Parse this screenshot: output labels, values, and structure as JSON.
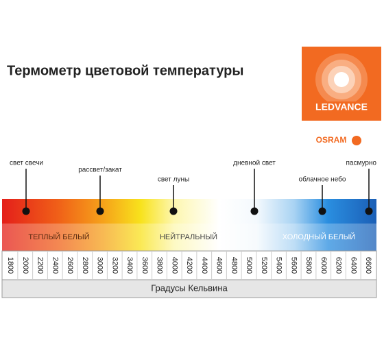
{
  "header": {
    "title": "Термометр цветовой температуры"
  },
  "brand": {
    "logo": "LEDVANCE",
    "sub": "OSRAM"
  },
  "markers": [
    {
      "label": "свет свечи"
    },
    {
      "label": "рассвет/закат"
    },
    {
      "label": "свет луны"
    },
    {
      "label": "дневной свет"
    },
    {
      "label": "облачное небо"
    },
    {
      "label": "пасмурно"
    }
  ],
  "zones": [
    "ТЕПЛЫЙ БЕЛЫЙ",
    "НЕЙТРАЛЬНЫЙ",
    "ХОЛОДНЫЙ БЕЛЫЙ"
  ],
  "scale": {
    "ticks": [
      "1800",
      "2000",
      "2200",
      "2400",
      "2600",
      "2800",
      "3000",
      "3200",
      "3400",
      "3600",
      "3800",
      "4000",
      "4200",
      "4400",
      "4600",
      "4800",
      "5000",
      "5200",
      "5400",
      "5600",
      "5800",
      "6000",
      "6200",
      "6400",
      "6600"
    ],
    "label": "Градусы Кельвина"
  }
}
